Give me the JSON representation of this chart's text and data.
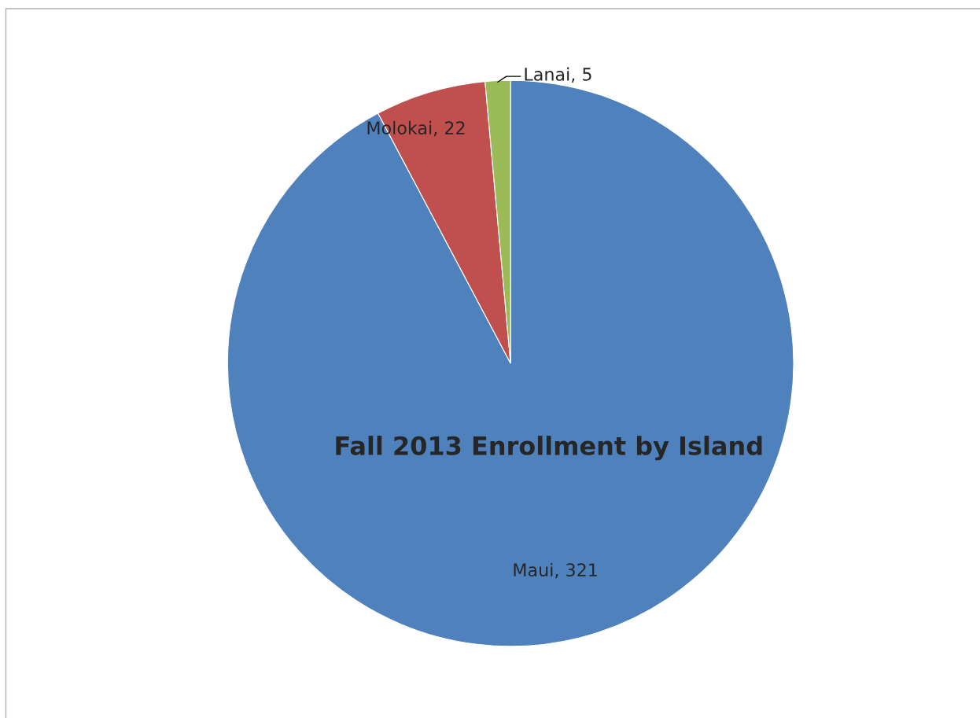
{
  "chart_data": {
    "type": "pie",
    "title": "Fall 2013 Enrollment by Island",
    "categories": [
      "Maui",
      "Molokai",
      "Lanai"
    ],
    "values": [
      321,
      22,
      5
    ],
    "value_labels": [
      ", 321",
      ", 22",
      ", 5"
    ],
    "colors": [
      "#4f81bd",
      "#c0504d",
      "#9bbb59"
    ],
    "legend": false
  }
}
